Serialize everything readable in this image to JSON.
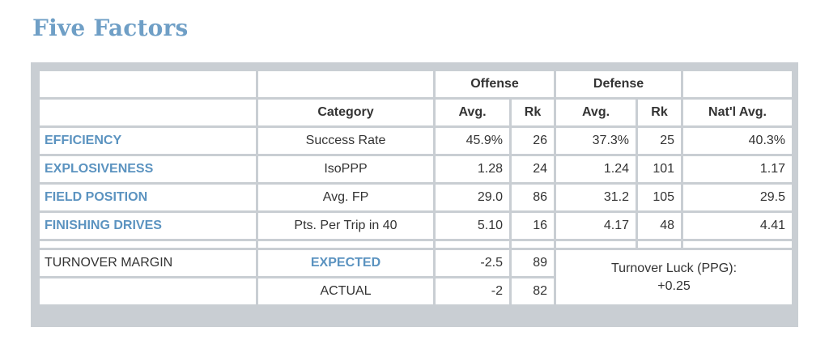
{
  "title": "Five Factors",
  "colors": {
    "accent": "#5b93c0",
    "border": "#c9ced3",
    "title": "#6f9fc6"
  },
  "header": {
    "offense": "Offense",
    "defense": "Defense",
    "category": "Category",
    "avg": "Avg.",
    "rk": "Rk",
    "natl_avg": "Nat'l Avg."
  },
  "rows": [
    {
      "factor": "EFFICIENCY",
      "category": "Success Rate",
      "off_avg": "45.9%",
      "off_rk": "26",
      "def_avg": "37.3%",
      "def_rk": "25",
      "natl": "40.3%"
    },
    {
      "factor": "EXPLOSIVENESS",
      "category": "IsoPPP",
      "off_avg": "1.28",
      "off_rk": "24",
      "def_avg": "1.24",
      "def_rk": "101",
      "natl": "1.17"
    },
    {
      "factor": "FIELD POSITION",
      "category": "Avg. FP",
      "off_avg": "29.0",
      "off_rk": "86",
      "def_avg": "31.2",
      "def_rk": "105",
      "natl": "29.5"
    },
    {
      "factor": "FINISHING DRIVES",
      "category": "Pts. Per Trip in 40",
      "off_avg": "5.10",
      "off_rk": "16",
      "def_avg": "4.17",
      "def_rk": "48",
      "natl": "4.41"
    }
  ],
  "turnover": {
    "label": "TURNOVER MARGIN",
    "expected_label": "EXPECTED",
    "expected_avg": "-2.5",
    "expected_rk": "89",
    "actual_label": "ACTUAL",
    "actual_avg": "-2",
    "actual_rk": "82",
    "luck_label": "Turnover Luck (PPG):",
    "luck_value": "+0.25"
  }
}
